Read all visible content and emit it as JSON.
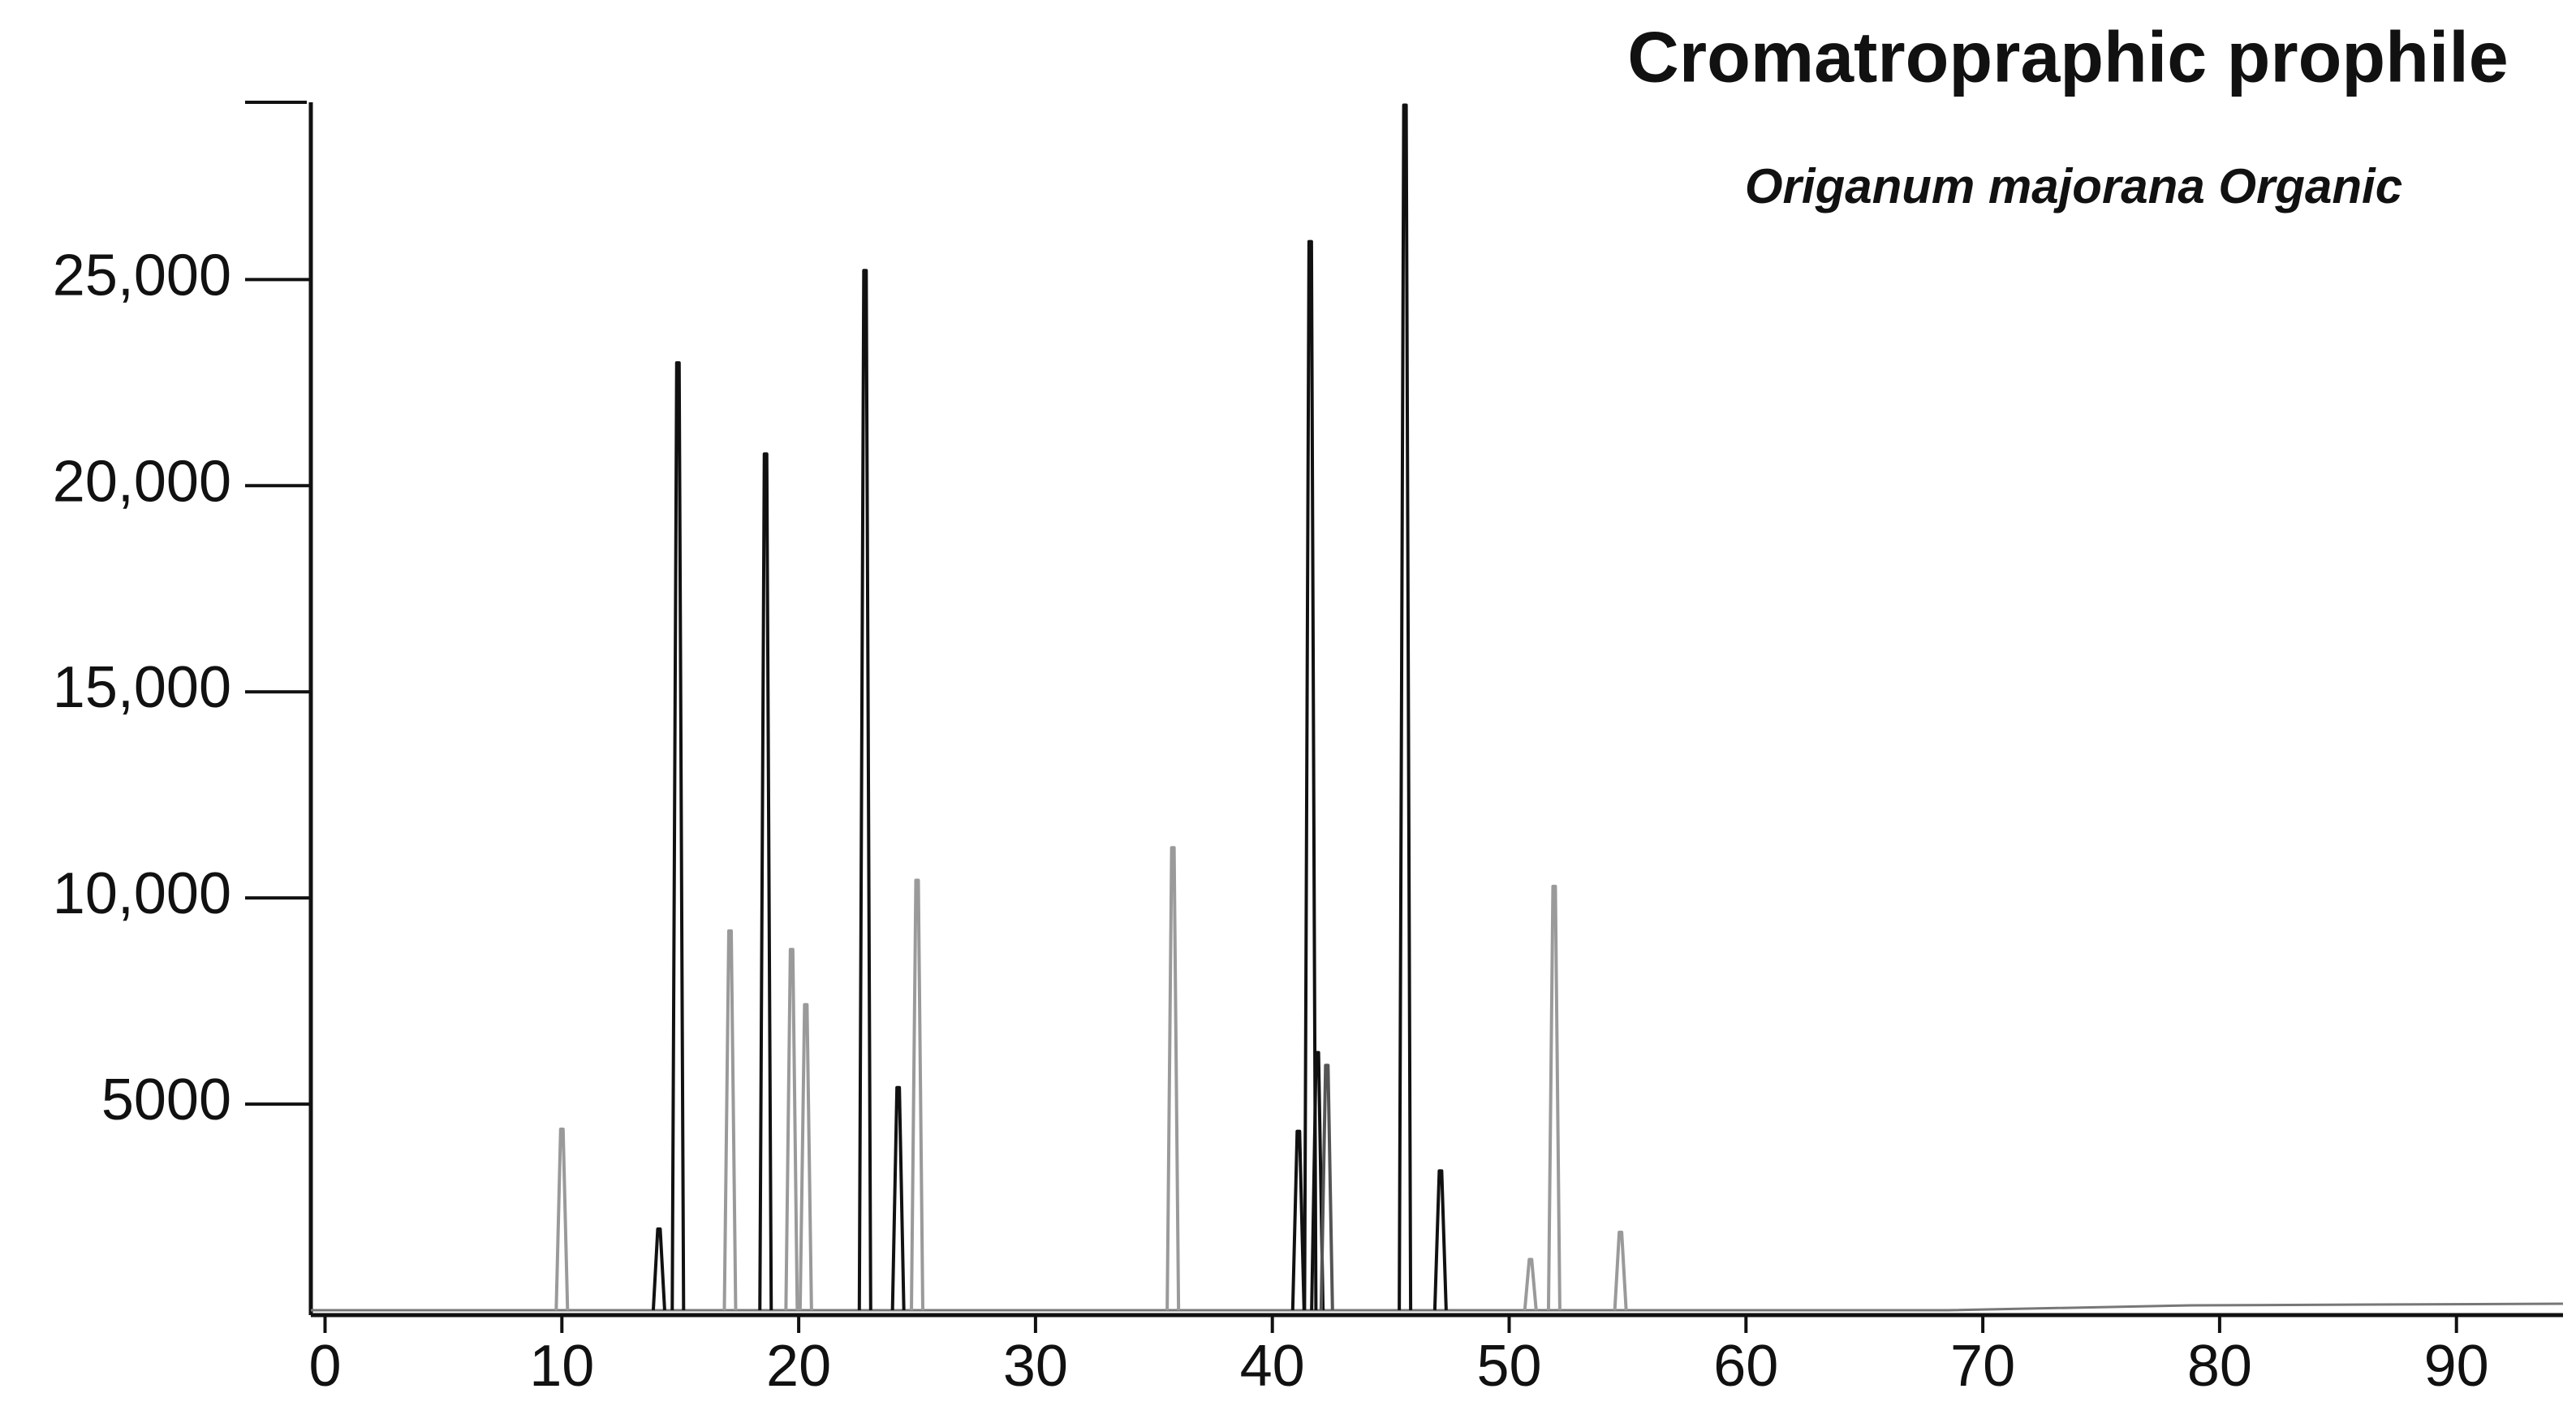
{
  "chart_data": {
    "type": "peaks",
    "title": "Cromatropraphic prophile",
    "subtitle": "Origanum  majorana Organic",
    "x": [
      10.0,
      14.1,
      14.9,
      17.1,
      18.6,
      19.7,
      20.3,
      22.8,
      24.2,
      25.0,
      35.8,
      41.1,
      41.6,
      41.9,
      42.3,
      45.6,
      47.1,
      50.9,
      51.9,
      54.7
    ],
    "values": [
      4390,
      1970,
      22980,
      9200,
      20770,
      8750,
      7410,
      25220,
      5400,
      10430,
      11220,
      4340,
      25920,
      6250,
      5940,
      29230,
      3380,
      1230,
      10280,
      1890
    ],
    "colors": [
      "#9a9a9a",
      "#111111",
      "#111111",
      "#9a9a9a",
      "#111111",
      "#9a9a9a",
      "#9a9a9a",
      "#111111",
      "#111111",
      "#9a9a9a",
      "#9a9a9a",
      "#111111",
      "#111111",
      "#111111",
      "#555555",
      "#111111",
      "#111111",
      "#9a9a9a",
      "#9a9a9a",
      "#9a9a9a"
    ],
    "xlim": [
      -0.6,
      94.5
    ],
    "ylim": [
      0,
      29300
    ],
    "xticks": [
      0,
      10,
      20,
      30,
      40,
      50,
      60,
      70,
      80,
      90
    ],
    "yticks": [
      5000,
      {
        "value": 10000,
        "label": "10,000"
      },
      {
        "value": 15000,
        "label": "15,000"
      },
      {
        "value": 20000,
        "label": "20,000"
      },
      {
        "value": 25000,
        "label": "25,000"
      }
    ]
  }
}
